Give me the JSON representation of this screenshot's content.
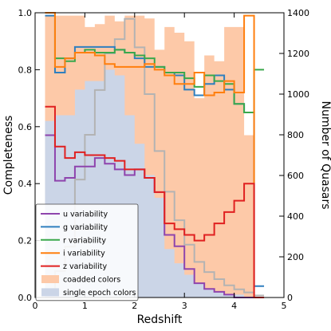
{
  "chart_data": {
    "type": "line",
    "xlabel": "Redshift",
    "ylabel": "Completeness",
    "y2label": "Number of Quasars",
    "xlim": [
      0,
      5
    ],
    "ylim": [
      0,
      1.0
    ],
    "y2lim": [
      0,
      1400
    ],
    "x_ticks": [
      "0",
      "1",
      "2",
      "3",
      "4",
      "5"
    ],
    "y_ticks": [
      "0.0",
      "0.2",
      "0.4",
      "0.6",
      "0.8",
      "1.0"
    ],
    "y2_ticks": [
      "0",
      "200",
      "400",
      "600",
      "800",
      "1000",
      "1200",
      "1400"
    ],
    "bin_edges": [
      0.2,
      0.4,
      0.6,
      0.8,
      1.0,
      1.2,
      1.4,
      1.6,
      1.8,
      2.0,
      2.2,
      2.4,
      2.6,
      2.8,
      3.0,
      3.2,
      3.4,
      3.6,
      3.8,
      4.0,
      4.2,
      4.4,
      4.6
    ],
    "series": [
      {
        "name": "u variability",
        "style": "line",
        "color": "#8e44ad",
        "values": [
          0.57,
          0.41,
          0.42,
          0.46,
          0.46,
          0.49,
          0.47,
          0.45,
          0.43,
          0.45,
          0.42,
          0.37,
          0.22,
          0.18,
          0.1,
          0.05,
          0.03,
          0.02,
          0.01,
          0.0,
          0.0,
          0.0
        ]
      },
      {
        "name": "g variability",
        "style": "line",
        "color": "#2f7fbf",
        "values": [
          0.99,
          0.79,
          0.84,
          0.88,
          0.88,
          0.88,
          0.88,
          0.87,
          0.86,
          0.84,
          0.81,
          0.81,
          0.79,
          0.78,
          0.73,
          0.71,
          0.75,
          0.78,
          0.73,
          0.68,
          0.65,
          0.04
        ]
      },
      {
        "name": "r variability",
        "style": "line",
        "color": "#3aa84c",
        "values": [
          1.0,
          0.84,
          0.83,
          0.86,
          0.87,
          0.86,
          0.86,
          0.87,
          0.86,
          0.85,
          0.84,
          0.81,
          0.79,
          0.79,
          0.77,
          0.74,
          0.78,
          0.76,
          0.75,
          0.68,
          0.65,
          0.8
        ]
      },
      {
        "name": "i variability",
        "style": "line",
        "color": "#ff7f0e",
        "values": [
          1.0,
          0.81,
          0.84,
          0.86,
          0.86,
          0.85,
          0.82,
          0.81,
          0.81,
          0.81,
          0.82,
          0.8,
          0.78,
          0.75,
          0.75,
          0.79,
          0.71,
          0.72,
          0.76,
          0.72,
          0.99,
          0.0
        ]
      },
      {
        "name": "z variability",
        "style": "line",
        "color": "#e02020",
        "values": [
          0.67,
          0.53,
          0.49,
          0.51,
          0.5,
          0.5,
          0.49,
          0.48,
          0.45,
          0.45,
          0.42,
          0.37,
          0.26,
          0.24,
          0.22,
          0.2,
          0.22,
          0.26,
          0.3,
          0.34,
          0.4,
          0.0
        ]
      },
      {
        "name": "coadded colors",
        "style": "fill",
        "color": "#fdc9a8",
        "values": [
          0.99,
          0.99,
          0.99,
          0.99,
          0.95,
          0.96,
          0.99,
          0.97,
          0.99,
          0.99,
          0.98,
          0.87,
          0.95,
          0.93,
          0.9,
          0.7,
          0.85,
          0.83,
          0.95,
          0.95,
          0.57,
          0.0
        ]
      },
      {
        "name": "single epoch colors",
        "style": "fill",
        "color": "#cbd5e7",
        "values": [
          0.62,
          0.64,
          0.64,
          0.73,
          0.76,
          0.76,
          0.8,
          0.78,
          0.64,
          0.54,
          0.43,
          0.35,
          0.17,
          0.12,
          0.08,
          0.05,
          0.03,
          0.02,
          0.01,
          0.01,
          0.0,
          0.0
        ]
      },
      {
        "name": "",
        "style": "histogram",
        "axis": "y2",
        "color": "#b3b3b3",
        "values": [
          30,
          130,
          250,
          580,
          800,
          1020,
          1200,
          1270,
          1370,
          1230,
          1000,
          720,
          520,
          380,
          260,
          175,
          125,
          90,
          60,
          40,
          25,
          10
        ]
      }
    ],
    "legend": "bottom-left",
    "grid": false
  }
}
